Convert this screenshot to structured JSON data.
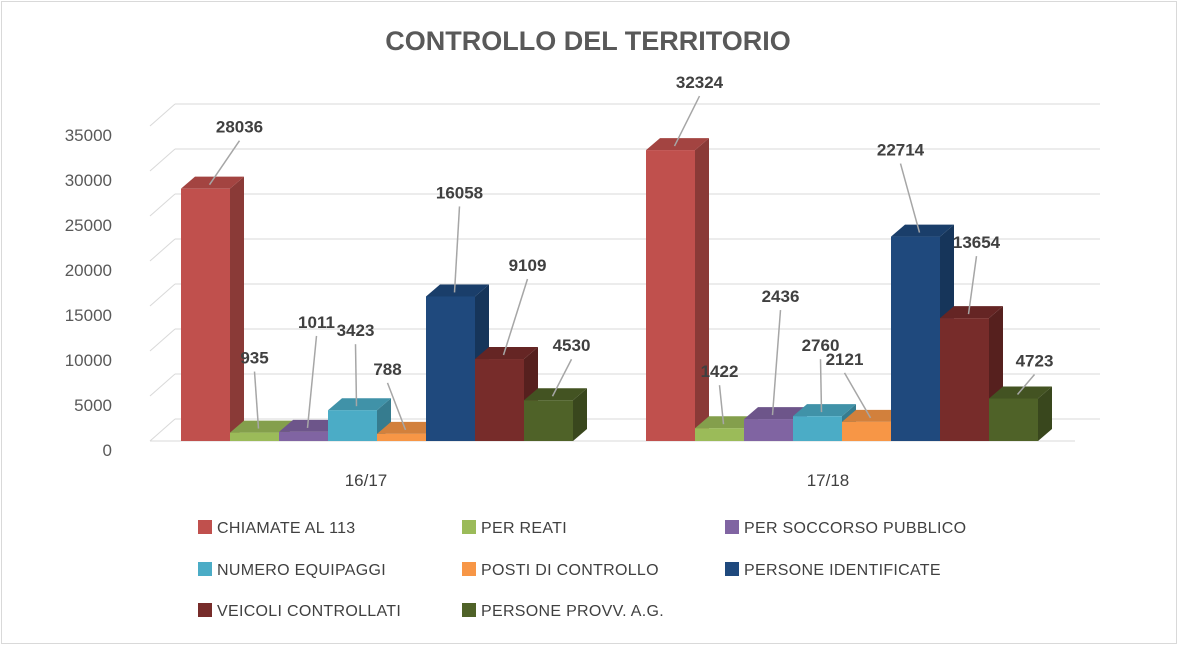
{
  "chart_data": {
    "type": "bar",
    "title": "CONTROLLO DEL TERRITORIO",
    "categories": [
      "16/17",
      "17/18"
    ],
    "series": [
      {
        "name": "CHIAMATE AL 113",
        "color": "#c0504d",
        "values": [
          28036,
          32324
        ]
      },
      {
        "name": "PER REATI",
        "color": "#9bbb59",
        "values": [
          935,
          1422
        ]
      },
      {
        "name": "PER SOCCORSO PUBBLICO",
        "color": "#8064a2",
        "values": [
          1011,
          2436
        ]
      },
      {
        "name": "NUMERO EQUIPAGGI",
        "color": "#4bacc6",
        "values": [
          3423,
          2760
        ]
      },
      {
        "name": "POSTI DI CONTROLLO",
        "color": "#f79646",
        "values": [
          788,
          2121
        ]
      },
      {
        "name": "PERSONE IDENTIFICATE",
        "color": "#1f497d",
        "values": [
          16058,
          22714
        ]
      },
      {
        "name": "VEICOLI CONTROLLATI",
        "color": "#772c2a",
        "values": [
          9109,
          13654
        ]
      },
      {
        "name": "PERSONE PROVV. A.G.",
        "color": "#4f6228",
        "values": [
          4530,
          4723
        ]
      }
    ],
    "yticks": [
      "0",
      "5000",
      "10000",
      "15000",
      "20000",
      "25000",
      "30000",
      "35000"
    ],
    "ylim": [
      0,
      35000
    ],
    "grid": true,
    "legend_position": "bottom",
    "style": "3d-clustered-column"
  }
}
